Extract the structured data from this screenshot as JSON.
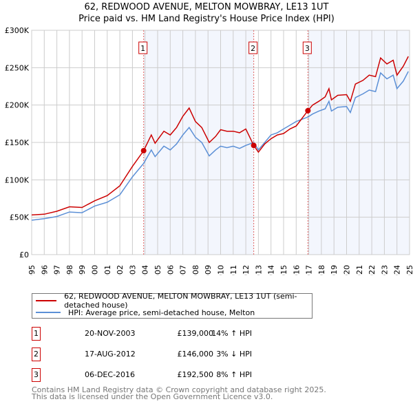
{
  "chart_data": {
    "type": "line",
    "title": "62, REDWOOD AVENUE, MELTON MOWBRAY, LE13 1UT",
    "subtitle": "Price paid vs. HM Land Registry's House Price Index (HPI)",
    "xlim": [
      1995,
      2025
    ],
    "ylim": [
      0,
      300000
    ],
    "x_ticks": [
      "1995",
      "1996",
      "1997",
      "1998",
      "1999",
      "2000",
      "2001",
      "2002",
      "2003",
      "2004",
      "2005",
      "2006",
      "2007",
      "2008",
      "2009",
      "2010",
      "2011",
      "2012",
      "2013",
      "2014",
      "2015",
      "2016",
      "2017",
      "2018",
      "2019",
      "2020",
      "2021",
      "2022",
      "2023",
      "2024",
      "2025"
    ],
    "y_ticks": [
      {
        "v": 0,
        "label": "£0"
      },
      {
        "v": 50000,
        "label": "£50K"
      },
      {
        "v": 100000,
        "label": "£100K"
      },
      {
        "v": 150000,
        "label": "£150K"
      },
      {
        "v": 200000,
        "label": "£200K"
      },
      {
        "v": 250000,
        "label": "£250K"
      },
      {
        "v": 300000,
        "label": "£300K"
      }
    ],
    "grid": true,
    "series": [
      {
        "name": "62, REDWOOD AVENUE, MELTON MOWBRAY, LE13 1UT (semi-detached house)",
        "color": "#cc0000",
        "x": [
          1995,
          1996,
          1997,
          1998,
          1999,
          2000,
          2001,
          2002,
          2003,
          2003.89,
          2004.5,
          2004.8,
          2005.5,
          2006,
          2006.5,
          2007,
          2007.5,
          2008,
          2008.5,
          2009.1,
          2009.6,
          2010,
          2010.5,
          2011,
          2011.5,
          2012,
          2012.63,
          2013,
          2013.5,
          2014,
          2014.5,
          2015,
          2015.5,
          2016,
          2016.93,
          2017.3,
          2017.8,
          2018.3,
          2018.6,
          2018.8,
          2019.3,
          2020,
          2020.3,
          2020.7,
          2021.3,
          2021.8,
          2022.3,
          2022.7,
          2023.2,
          2023.7,
          2024,
          2024.5,
          2024.9
        ],
        "y": [
          53000,
          54000,
          58000,
          64000,
          63000,
          72000,
          79000,
          92000,
          118000,
          139000,
          160000,
          149000,
          165000,
          160000,
          170000,
          185000,
          196000,
          178000,
          170000,
          150000,
          158000,
          167000,
          165000,
          165000,
          163000,
          168000,
          146000,
          137000,
          148000,
          155000,
          160000,
          162000,
          168000,
          172000,
          192500,
          200000,
          205000,
          211000,
          222000,
          207000,
          213000,
          214000,
          205000,
          228000,
          233000,
          240000,
          238000,
          263000,
          255000,
          260000,
          240000,
          252000,
          265000
        ]
      },
      {
        "name": "HPI: Average price, semi-detached house, Melton",
        "color": "#5b8fd6",
        "x": [
          1995,
          1996,
          1997,
          1998,
          1999,
          2000,
          2001,
          2002,
          2003,
          2003.89,
          2004.5,
          2004.8,
          2005.5,
          2006,
          2006.5,
          2007,
          2007.5,
          2008,
          2008.5,
          2009.1,
          2009.6,
          2010,
          2010.5,
          2011,
          2011.5,
          2012,
          2012.63,
          2013,
          2013.5,
          2014,
          2014.5,
          2015,
          2015.5,
          2016,
          2016.93,
          2017.3,
          2017.8,
          2018.3,
          2018.6,
          2018.8,
          2019.3,
          2020,
          2020.3,
          2020.7,
          2021.3,
          2021.8,
          2022.3,
          2022.7,
          2023.2,
          2023.7,
          2024,
          2024.5,
          2024.9
        ],
        "y": [
          46000,
          48000,
          51000,
          57000,
          56000,
          65000,
          70000,
          80000,
          104000,
          122000,
          140000,
          131000,
          145000,
          140000,
          148000,
          160000,
          170000,
          157000,
          150000,
          132000,
          140000,
          145000,
          143000,
          145000,
          142000,
          146000,
          150000,
          140000,
          150000,
          160000,
          163000,
          168000,
          173000,
          178000,
          184000,
          188000,
          192000,
          195000,
          205000,
          192000,
          197000,
          198000,
          190000,
          210000,
          215000,
          220000,
          218000,
          243000,
          235000,
          240000,
          222000,
          232000,
          245000
        ]
      }
    ],
    "sales": [
      {
        "id": "1",
        "x": 2003.89,
        "y": 139000,
        "date": "20-NOV-2003",
        "price": "£139,000",
        "hpi": "14% ↑ HPI"
      },
      {
        "id": "2",
        "x": 2012.63,
        "y": 146000,
        "date": "17-AUG-2012",
        "price": "£146,000",
        "hpi": "3% ↓ HPI"
      },
      {
        "id": "3",
        "x": 2016.93,
        "y": 192500,
        "date": "06-DEC-2016",
        "price": "£192,500",
        "hpi": "8% ↑ HPI"
      }
    ],
    "legend_placement": "bottom"
  },
  "footer": {
    "line1": "Contains HM Land Registry data © Crown copyright and database right 2025.",
    "line2": "This data is licensed under the Open Government Licence v3.0."
  }
}
